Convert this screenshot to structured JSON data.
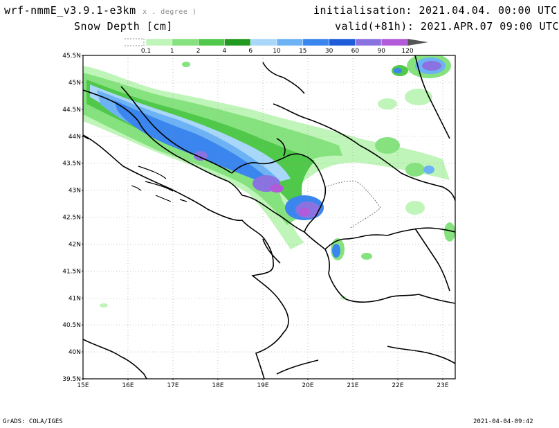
{
  "header": {
    "model": "wrf-nmmE_v3.9.1-e3km",
    "model_note": "x . degree )",
    "variable": "Snow Depth [cm]",
    "init": "initialisation: 2021.04.04.  00:00 UTC",
    "valid": "valid(+81h): 2021.APR.07 09:00 UTC"
  },
  "colorbar": {
    "labels": [
      "0.1",
      "1",
      "2",
      "4",
      "6",
      "10",
      "15",
      "30",
      "60",
      "90",
      "120"
    ],
    "colors": [
      "#bff5b8",
      "#86e27e",
      "#50c84a",
      "#229a20",
      "#a8d7fa",
      "#6cb2f5",
      "#3a86ee",
      "#1f5dd8",
      "#8a72e0",
      "#b25ad9"
    ]
  },
  "map": {
    "lat_labels": [
      "45.5N",
      "45N",
      "44.5N",
      "44N",
      "43.5N",
      "43N",
      "42.5N",
      "42N",
      "41.5N",
      "41N",
      "40.5N",
      "40N",
      "39.5N"
    ],
    "lon_labels": [
      "15E",
      "16E",
      "17E",
      "18E",
      "19E",
      "20E",
      "21E",
      "22E",
      "23E"
    ]
  },
  "footer": {
    "left": "GrADS: COLA/IGES",
    "right": "2021-04-04-09:42"
  }
}
